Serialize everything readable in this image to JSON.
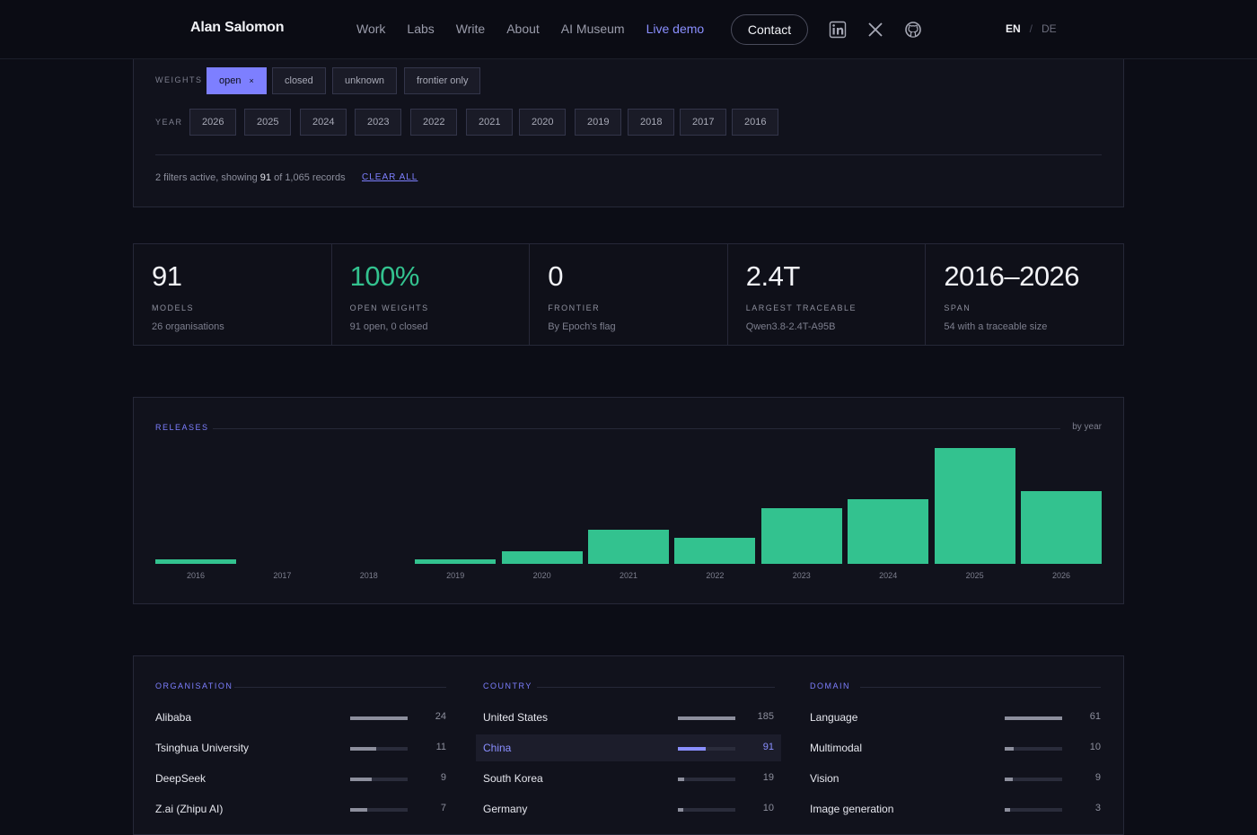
{
  "header": {
    "brand": "Alan Salomon",
    "nav": [
      "Work",
      "Labs",
      "Write",
      "About",
      "AI Museum",
      "Live demo"
    ],
    "contact_label": "Contact",
    "social_icons": [
      "linkedin-icon",
      "x-icon",
      "github-icon"
    ],
    "lang_active": "EN",
    "lang_sep": "/",
    "lang_other": "DE"
  },
  "filters": {
    "weights_label": "WEIGHTS",
    "weights": [
      {
        "label": "open",
        "selected": true,
        "remove": "×"
      },
      {
        "label": "closed",
        "selected": false
      },
      {
        "label": "unknown",
        "selected": false
      },
      {
        "label": "frontier only",
        "selected": false
      }
    ],
    "year_label": "YEAR",
    "years": [
      "2026",
      "2025",
      "2024",
      "2023",
      "2022",
      "2021",
      "2020",
      "2019",
      "2018",
      "2017",
      "2016"
    ],
    "status_prefix": "2 filters active, showing ",
    "status_shown": "91",
    "status_suffix": " of 1,065 records",
    "clear_label": "CLEAR ALL"
  },
  "stats": [
    {
      "value": "91",
      "label": "MODELS",
      "sub": "26 organisations",
      "accent": false
    },
    {
      "value": "100%",
      "label": "OPEN WEIGHTS",
      "sub": "91 open, 0 closed",
      "accent": true
    },
    {
      "value": "0",
      "label": "FRONTIER",
      "sub": "By Epoch's flag",
      "accent": false
    },
    {
      "value": "2.4T",
      "label": "LARGEST TRACEABLE",
      "sub": "Qwen3.8-2.4T-A95B",
      "accent": false
    },
    {
      "value": "2016–2026",
      "label": "SPAN",
      "sub": "54 with a traceable size",
      "accent": false
    }
  ],
  "releases": {
    "title": "RELEASES",
    "mode": "by year"
  },
  "chart_data": {
    "type": "bar",
    "categories": [
      "2016",
      "2017",
      "2018",
      "2019",
      "2020",
      "2021",
      "2022",
      "2023",
      "2024",
      "2025",
      "2026"
    ],
    "values": [
      1,
      0,
      0,
      1,
      3,
      8,
      6,
      13,
      15,
      27,
      17
    ],
    "color": "#33c28f",
    "ylim": [
      0,
      27
    ]
  },
  "breakdown": {
    "organisation": {
      "title": "ORGANISATION",
      "max": 24,
      "rows": [
        {
          "name": "Alibaba",
          "count": 24
        },
        {
          "name": "Tsinghua University",
          "count": 11
        },
        {
          "name": "DeepSeek",
          "count": 9
        },
        {
          "name": "Z.ai (Zhipu AI)",
          "count": 7
        }
      ]
    },
    "country": {
      "title": "COUNTRY",
      "max": 185,
      "rows": [
        {
          "name": "United States",
          "count": 185
        },
        {
          "name": "China",
          "count": 91,
          "highlight": true
        },
        {
          "name": "South Korea",
          "count": 19
        },
        {
          "name": "Germany",
          "count": 10
        }
      ]
    },
    "domain": {
      "title": "DOMAIN",
      "max": 61,
      "rows": [
        {
          "name": "Language",
          "count": 61
        },
        {
          "name": "Multimodal",
          "count": 10
        },
        {
          "name": "Vision",
          "count": 9
        },
        {
          "name": "Image generation",
          "count": 3
        }
      ]
    }
  }
}
